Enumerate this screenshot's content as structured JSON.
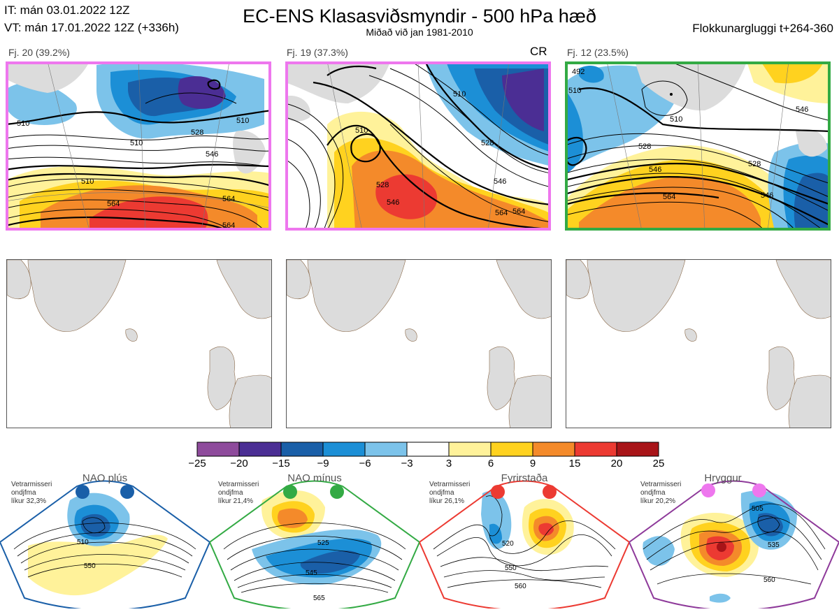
{
  "header": {
    "it_line": "IT: mán 03.01.2022 12Z",
    "vt_line": "VT: mán 17.01.2022 12Z  (+336h)",
    "title": "EC-ENS Klasasviðsmyndir - 500 hPa hæð",
    "subtitle": "Miðað við jan 1981-2010",
    "window": "Flokkunargluggi t+264-360"
  },
  "clusters": [
    {
      "label": "Fj. 20 (39.2%)",
      "frame_color": "#ee77ee",
      "badge": "",
      "contours": [
        "510",
        "528",
        "546",
        "564",
        "564",
        "564",
        "510",
        "510",
        "510"
      ]
    },
    {
      "label": "Fj. 19 (37.3%)",
      "frame_color": "#ee77ee",
      "badge": "CR",
      "contours": [
        "510",
        "528",
        "546",
        "564",
        "528",
        "546",
        "564",
        "510"
      ]
    },
    {
      "label": "Fj. 12 (23.5%)",
      "frame_color": "#33aa44",
      "badge": "",
      "contours": [
        "492",
        "510",
        "510",
        "528",
        "546",
        "564",
        "528",
        "546",
        "546"
      ]
    }
  ],
  "colorbar": {
    "colors": [
      "#8e4b9c",
      "#4b2e94",
      "#1a5fa8",
      "#1c8fd6",
      "#7cc3ea",
      "#ffffff",
      "#fff29a",
      "#ffd21f",
      "#f48a2a",
      "#ec3a32",
      "#a81418"
    ],
    "labels": [
      "−25",
      "−20",
      "−15",
      "−9",
      "−6",
      "−3",
      "3",
      "6",
      "9",
      "15",
      "20",
      "25"
    ]
  },
  "regimes": [
    {
      "name": "NAO plús",
      "note_line1": "Vetrarmisseri",
      "note_line2": "ondjfma",
      "note_line3": "líkur 32,3%",
      "dot_color": "#1a5fa8",
      "frame_color": "#1a5fa8",
      "labels": [
        "510",
        "550"
      ]
    },
    {
      "name": "NAO mínus",
      "note_line1": "Vetrarmisseri",
      "note_line2": "ondjfma",
      "note_line3": "líkur 21,4%",
      "dot_color": "#33aa44",
      "frame_color": "#33aa44",
      "labels": [
        "525",
        "545",
        "565"
      ]
    },
    {
      "name": "Fyrirstaða",
      "note_line1": "Vetrarmisseri",
      "note_line2": "ondjfma",
      "note_line3": "líkur 26,1%",
      "dot_color": "#ec3a32",
      "frame_color": "#ec3a32",
      "labels": [
        "520",
        "550",
        "560"
      ]
    },
    {
      "name": "Hryggur",
      "note_line1": "Vetrarmisseri",
      "note_line2": "ondjfma",
      "note_line3": "líkur 20,2%",
      "dot_color": "#ee77ee",
      "frame_color": "#8e3a9a",
      "labels": [
        "505",
        "535",
        "560"
      ]
    }
  ]
}
